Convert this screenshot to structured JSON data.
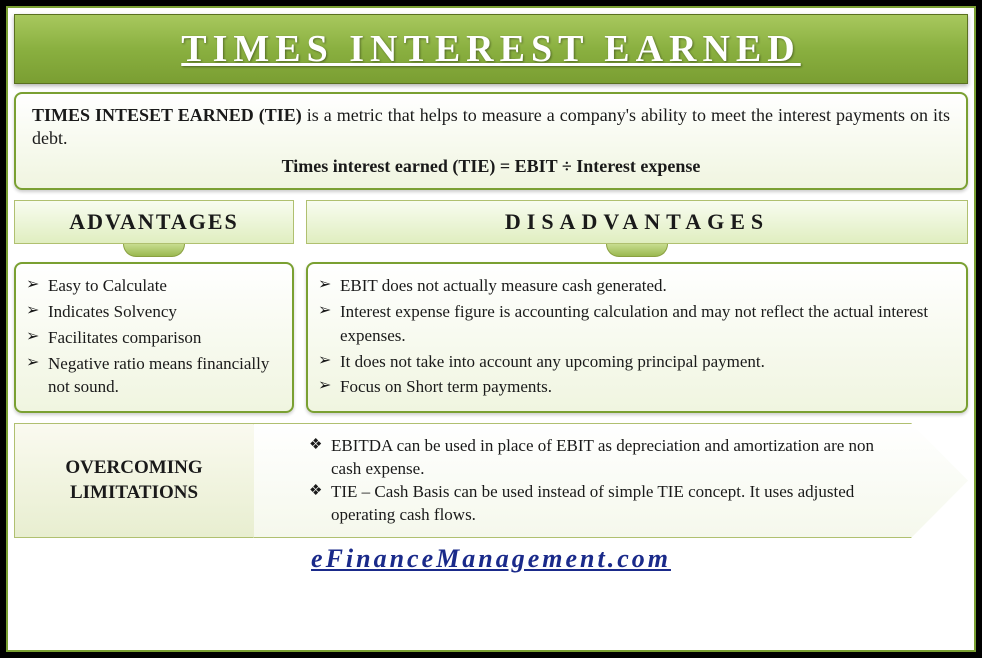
{
  "title": "TIMES INTEREST EARNED",
  "definition": {
    "term": "TIMES INTESET EARNED (TIE)",
    "text": " is a metric that helps to measure a company's ability to meet the interest payments on its debt.",
    "formula": "Times interest earned (TIE) = EBIT ÷ Interest expense"
  },
  "advantages": {
    "header": "ADVANTAGES",
    "items": [
      "Easy to Calculate",
      "Indicates Solvency",
      "Facilitates comparison",
      "Negative ratio means financially not sound."
    ]
  },
  "disadvantages": {
    "header": "DISADVANTAGES",
    "items": [
      "EBIT does not actually measure cash generated.",
      "Interest expense figure is accounting calculation and may not reflect the actual interest expenses.",
      "It does not take into account any upcoming principal payment.",
      "Focus on Short term payments."
    ]
  },
  "overcoming": {
    "header": "OVERCOMING LIMITATIONS",
    "items": [
      "EBITDA can be used in place of EBIT as depreciation and amortization are non cash expense.",
      "TIE – Cash Basis can be used instead of simple TIE concept. It uses adjusted operating cash flows."
    ]
  },
  "footer": "eFinanceManagement.com",
  "colors": {
    "green_dark": "#7aa032",
    "green_light": "#c8dc90",
    "text": "#1a1a1a",
    "link": "#1a2a8a",
    "bg": "#000000"
  }
}
